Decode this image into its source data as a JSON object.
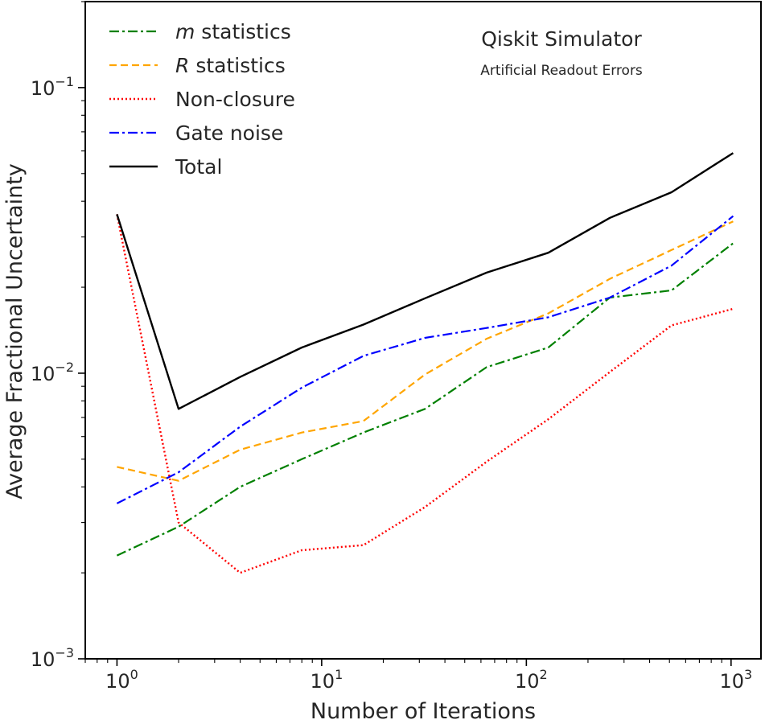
{
  "chart_data": {
    "type": "line",
    "xscale": "log",
    "yscale": "log",
    "xlabel": "Number of Iterations",
    "ylabel": "Average Fractional Uncertainty",
    "xlim": [
      0.7,
      1400
    ],
    "ylim": [
      0.001,
      0.2
    ],
    "x": [
      1,
      2,
      4,
      8,
      16,
      32,
      64,
      128,
      256,
      512,
      1024
    ],
    "x_ticks": [
      {
        "value": 1,
        "base": "10",
        "exp": "0"
      },
      {
        "value": 10,
        "base": "10",
        "exp": "1"
      },
      {
        "value": 100,
        "base": "10",
        "exp": "2"
      },
      {
        "value": 1000,
        "base": "10",
        "exp": "3"
      }
    ],
    "y_ticks": [
      {
        "value": 0.001,
        "base": "10",
        "exp": "−3"
      },
      {
        "value": 0.01,
        "base": "10",
        "exp": "−2"
      },
      {
        "value": 0.1,
        "base": "10",
        "exp": "−1"
      }
    ],
    "series": [
      {
        "name_italic": "m",
        "name": " statistics",
        "color": "#008000",
        "dash": "12,4,3,4",
        "width": 2.2,
        "values": [
          0.0023,
          0.0029,
          0.004,
          0.005,
          0.0062,
          0.0075,
          0.0105,
          0.0123,
          0.0184,
          0.0195,
          0.0285
        ]
      },
      {
        "name_italic": "R",
        "name": " statistics",
        "color": "#FFA500",
        "dash": "9,5",
        "width": 2.2,
        "values": [
          0.0047,
          0.0042,
          0.0054,
          0.0062,
          0.0068,
          0.0099,
          0.0132,
          0.0162,
          0.0214,
          0.027,
          0.034
        ]
      },
      {
        "name_italic": "",
        "name": "Non-closure",
        "color": "#FF0000",
        "dash": "2,3",
        "width": 2.4,
        "values": [
          0.036,
          0.003,
          0.002,
          0.0024,
          0.0025,
          0.0034,
          0.0049,
          0.0069,
          0.0101,
          0.0147,
          0.0168
        ]
      },
      {
        "name_italic": "",
        "name": "Gate noise",
        "color": "#0000FF",
        "dash": "12,4,3,4",
        "width": 2.2,
        "values": [
          0.0035,
          0.0045,
          0.0065,
          0.0089,
          0.0115,
          0.0133,
          0.0144,
          0.0157,
          0.0184,
          0.0238,
          0.0355
        ]
      },
      {
        "name_italic": "",
        "name": "Total",
        "color": "#000000",
        "dash": "",
        "width": 2.4,
        "values": [
          0.036,
          0.0075,
          0.0097,
          0.0123,
          0.0148,
          0.0183,
          0.0225,
          0.0264,
          0.035,
          0.043,
          0.059
        ]
      }
    ],
    "annotation": {
      "title": "Qiskit Simulator",
      "subtitle": "Artificial Readout Errors"
    },
    "legend_position": "upper-left",
    "grid": false
  }
}
